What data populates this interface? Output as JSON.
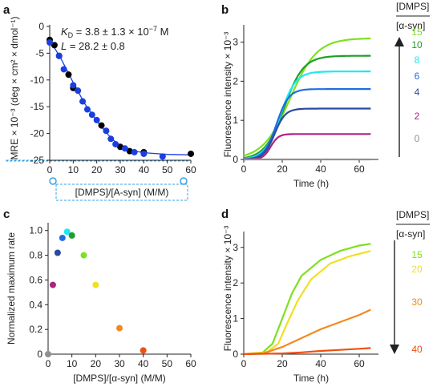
{
  "panels": {
    "a": "a",
    "b": "b",
    "c": "c",
    "d": "d"
  },
  "chart_data": [
    {
      "id": "a",
      "type": "scatter",
      "xlabel": "[DMPS]/[A-syn] (M/M)",
      "ylabel": "MRE × 10⁻³ (deg × cm² × dmol⁻¹)",
      "xlim": [
        0,
        60
      ],
      "ylim": [
        -25,
        0
      ],
      "xticks": [
        "0",
        "10",
        "20",
        "30",
        "40",
        "50",
        "60"
      ],
      "yticks": [
        "0",
        "-5",
        "-10",
        "-15",
        "-20",
        "-25"
      ],
      "annotation_kd": "K_D = 3.8 ± 1.3 × 10⁻⁷ M",
      "annotation_kd_main": "K",
      "annotation_kd_sub": "D",
      "annotation_kd_rest": " = 3.8 ± 1.3 × 10",
      "annotation_kd_exp": "−7",
      "annotation_kd_unit": " M",
      "annotation_l": "L = 28.2 ± 0.8",
      "annotation_l_main": "L",
      "annotation_l_rest": " = 28.2 ± 0.8",
      "series": [
        {
          "color": "#000000",
          "points": [
            [
              0,
              -2.5
            ],
            [
              2,
              -3.5
            ],
            [
              4,
              -5.5
            ],
            [
              8,
              -9
            ],
            [
              10,
              -11.5
            ],
            [
              22,
              -18.5
            ],
            [
              30,
              -22.5
            ],
            [
              34,
              -23.3
            ],
            [
              40,
              -23.5
            ],
            [
              60,
              -23.8
            ]
          ]
        },
        {
          "color": "#1a3fe0",
          "points": [
            [
              0,
              -3
            ],
            [
              4,
              -5.5
            ],
            [
              6,
              -8
            ],
            [
              10,
              -11
            ],
            [
              12,
              -12
            ],
            [
              14,
              -14
            ],
            [
              16,
              -15.5
            ],
            [
              18,
              -16.5
            ],
            [
              20,
              -17.5
            ],
            [
              24,
              -19.5
            ],
            [
              26,
              -21
            ],
            [
              28,
              -22
            ],
            [
              32,
              -22.8
            ],
            [
              36,
              -23.5
            ],
            [
              40,
              -23.8
            ],
            [
              48,
              -24.3
            ]
          ]
        }
      ],
      "fit_color": "#1a3fe0",
      "fit": [
        [
          0,
          -2.5
        ],
        [
          5,
          -6.2
        ],
        [
          10,
          -10.5
        ],
        [
          15,
          -14.5
        ],
        [
          20,
          -17.7
        ],
        [
          25,
          -20.3
        ],
        [
          28,
          -21.6
        ],
        [
          31,
          -22.5
        ],
        [
          35,
          -23.2
        ],
        [
          40,
          -23.6
        ],
        [
          50,
          -23.9
        ],
        [
          60,
          -24
        ]
      ]
    },
    {
      "id": "b",
      "type": "line",
      "xlabel": "Time (h)",
      "ylabel": "Fluorescence intensity × 10⁻³",
      "xlim": [
        0,
        70
      ],
      "ylim": [
        0,
        3.4
      ],
      "xticks": [
        "0",
        "20",
        "40",
        "60"
      ],
      "yticks": [
        "0",
        "1",
        "2",
        "3"
      ],
      "legend_title_top": "[DMPS]",
      "legend_title_bottom": "[α-syn]",
      "series": [
        {
          "name": "15",
          "color": "#7ee020",
          "plateau": 3.1,
          "t50": 24,
          "k": 7
        },
        {
          "name": "10",
          "color": "#1f9e2a",
          "plateau": 2.65,
          "t50": 21,
          "k": 5
        },
        {
          "name": "8",
          "color": "#1fe8f0",
          "plateau": 2.25,
          "t50": 19,
          "k": 4
        },
        {
          "name": "6",
          "color": "#1f6ee0",
          "plateau": 1.8,
          "t50": 17,
          "k": 3.2
        },
        {
          "name": "4",
          "color": "#2a4aa0",
          "plateau": 1.3,
          "t50": 16,
          "k": 2.8
        },
        {
          "name": "2",
          "color": "#b02080",
          "plateau": 0.65,
          "t50": 14,
          "k": 2
        },
        {
          "name": "0",
          "color": "#909090",
          "plateau": 0.0,
          "t50": 14,
          "k": 2
        }
      ]
    },
    {
      "id": "c",
      "type": "scatter",
      "xlabel": "[DMPS]/[α-syn] (M/M)",
      "ylabel": "Normalized maximum rate",
      "xlim": [
        0,
        60
      ],
      "ylim": [
        0,
        1.05
      ],
      "xticks": [
        "0",
        "10",
        "20",
        "30",
        "40",
        "50",
        "60"
      ],
      "yticks": [
        "0",
        "0.2",
        "0.4",
        "0.6",
        "0.8",
        "1.0"
      ],
      "points": [
        {
          "x": 0,
          "y": 0.0,
          "color": "#909090"
        },
        {
          "x": 2,
          "y": 0.56,
          "color": "#b02080"
        },
        {
          "x": 4,
          "y": 0.82,
          "color": "#2a4aa0"
        },
        {
          "x": 6,
          "y": 0.94,
          "color": "#1f6ee0"
        },
        {
          "x": 8,
          "y": 0.99,
          "color": "#1fe8f0"
        },
        {
          "x": 10,
          "y": 0.96,
          "color": "#1f9e2a"
        },
        {
          "x": 15,
          "y": 0.8,
          "color": "#7ee020"
        },
        {
          "x": 20,
          "y": 0.56,
          "color": "#f0e020"
        },
        {
          "x": 30,
          "y": 0.21,
          "color": "#f08a20"
        },
        {
          "x": 40,
          "y": 0.03,
          "color": "#f05010"
        }
      ]
    },
    {
      "id": "d",
      "type": "line",
      "xlabel": "Time (h)",
      "ylabel": "Fluorescence intensity × 10⁻³",
      "xlim": [
        0,
        70
      ],
      "ylim": [
        0,
        3.4
      ],
      "xticks": [
        "0",
        "20",
        "40",
        "60"
      ],
      "yticks": [
        "0",
        "1",
        "2",
        "3"
      ],
      "legend_title_top": "[DMPS]",
      "legend_title_bottom": "[α-syn]",
      "series": [
        {
          "name": "15",
          "color": "#7ee020",
          "curve": [
            [
              0,
              0
            ],
            [
              10,
              0.05
            ],
            [
              15,
              0.3
            ],
            [
              20,
              1.0
            ],
            [
              25,
              1.7
            ],
            [
              30,
              2.2
            ],
            [
              40,
              2.65
            ],
            [
              50,
              2.9
            ],
            [
              60,
              3.05
            ],
            [
              66,
              3.1
            ]
          ]
        },
        {
          "name": "20",
          "color": "#f0e020",
          "curve": [
            [
              0,
              0
            ],
            [
              12,
              0.05
            ],
            [
              18,
              0.3
            ],
            [
              22,
              0.8
            ],
            [
              28,
              1.5
            ],
            [
              35,
              2.1
            ],
            [
              45,
              2.55
            ],
            [
              55,
              2.75
            ],
            [
              66,
              2.9
            ]
          ]
        },
        {
          "name": "30",
          "color": "#f08a20",
          "curve": [
            [
              0,
              0
            ],
            [
              10,
              0.02
            ],
            [
              20,
              0.2
            ],
            [
              30,
              0.45
            ],
            [
              40,
              0.7
            ],
            [
              50,
              0.9
            ],
            [
              60,
              1.1
            ],
            [
              66,
              1.25
            ]
          ]
        },
        {
          "name": "40",
          "color": "#f05010",
          "curve": [
            [
              0,
              0
            ],
            [
              20,
              0.02
            ],
            [
              30,
              0.05
            ],
            [
              40,
              0.09
            ],
            [
              50,
              0.12
            ],
            [
              60,
              0.15
            ],
            [
              66,
              0.17
            ]
          ]
        }
      ]
    }
  ]
}
